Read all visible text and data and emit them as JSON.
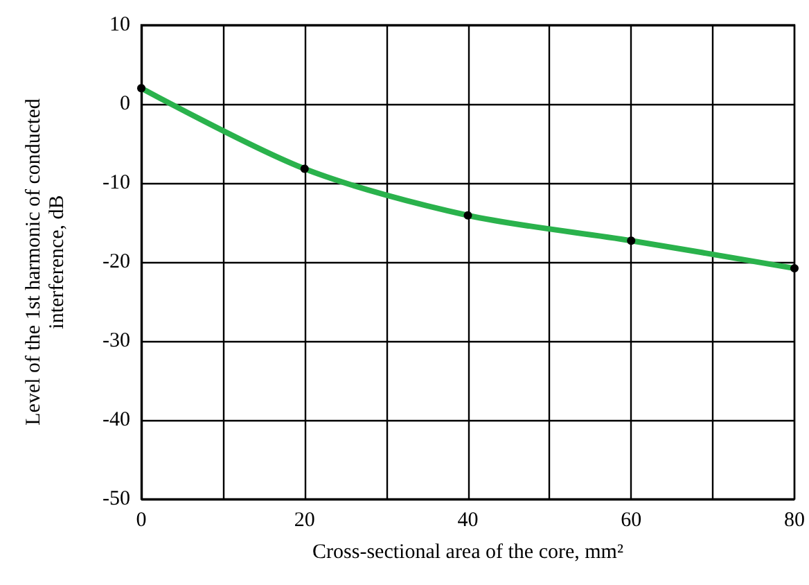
{
  "chart_data": {
    "type": "line",
    "xlabel": "Cross-sectional area of the core, mm²",
    "ylabel": "Level of the 1st harmonic of conducted\ninterference, dB",
    "x": [
      0,
      20,
      40,
      60,
      80
    ],
    "series": [
      {
        "color": "#2ab24c",
        "values": [
          2,
          -8.2,
          -14.1,
          -17.3,
          -20.8
        ]
      }
    ],
    "xlim": [
      0,
      80
    ],
    "xticks": [
      0,
      {
        "value": 10,
        "label": null
      },
      20,
      {
        "value": 30,
        "label": null
      },
      40,
      {
        "value": 50,
        "label": null
      },
      60,
      {
        "value": 70,
        "label": null
      },
      80
    ],
    "ylim": [
      -50,
      10
    ],
    "yticks": [
      -50,
      -40,
      -30,
      -20,
      -10,
      0,
      10
    ],
    "grid": true,
    "marker": "circle",
    "line_style": "solid"
  }
}
